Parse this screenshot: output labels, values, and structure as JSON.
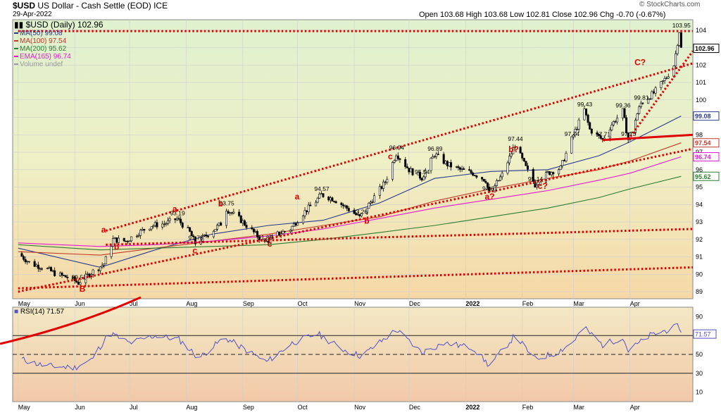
{
  "header": {
    "symbol": "$USD",
    "name": "US Dollar - Cash Settle (EOD)",
    "exchange": "ICE",
    "date": "29-Apr-2022",
    "symbol_line": "$USD (Daily) 102.96",
    "ohlc_line": "Open 103.68  High 103.68  Low 102.81  Close 102.96  Chg -0.70 (-0.67%)",
    "watermark": "© StockCharts.com"
  },
  "colors": {
    "price": "#000000",
    "ma50": "#2a3a8c",
    "ma100": "#c0392b",
    "ma200": "#2e7d32",
    "ema165": "#e31ad4",
    "annotation": "#e00000",
    "rsi": "#5050c8"
  },
  "legend": [
    {
      "text": "MA(50) 99.08",
      "color": "#2a3a8c"
    },
    {
      "text": "MA(100) 97.54",
      "color": "#c0392b"
    },
    {
      "text": "MA(200) 95.62",
      "color": "#2e7d32"
    },
    {
      "text": "EMA(165) 96.74",
      "color": "#e31ad4"
    },
    {
      "text": "Volume undef",
      "color": "#9a9a9a"
    }
  ],
  "chart_data": [
    {
      "type": "candlestick",
      "title": "$USD (Daily) 102.96",
      "ylim": [
        88.6,
        104.6
      ],
      "y_ticks": [
        89,
        90,
        91,
        92,
        93,
        94,
        95,
        96,
        97,
        98,
        99,
        100,
        101,
        102,
        103,
        104
      ],
      "x_labels": [
        "May",
        "Jun",
        "Jul",
        "Aug",
        "Sep",
        "Oct",
        "Nov",
        "Dec",
        "2022",
        "Feb",
        "Mar",
        "Apr"
      ],
      "price_path": [
        [
          "2021-05-01",
          91.2
        ],
        [
          "2021-05-08",
          90.6
        ],
        [
          "2021-05-15",
          90.4
        ],
        [
          "2021-05-22",
          90.0
        ],
        [
          "2021-05-29",
          89.8
        ],
        [
          "2021-06-03",
          89.51
        ],
        [
          "2021-06-10",
          90.1
        ],
        [
          "2021-06-17",
          90.6
        ],
        [
          "2021-06-22",
          92.0
        ],
        [
          "2021-06-29",
          91.9
        ],
        [
          "2021-07-06",
          92.4
        ],
        [
          "2021-07-13",
          92.8
        ],
        [
          "2021-07-20",
          92.9
        ],
        [
          "2021-07-27",
          93.19
        ],
        [
          "2021-08-03",
          92.4
        ],
        [
          "2021-08-06",
          91.78
        ],
        [
          "2021-08-13",
          92.3
        ],
        [
          "2021-08-20",
          92.9
        ],
        [
          "2021-08-23",
          93.75
        ],
        [
          "2021-08-30",
          93.2
        ],
        [
          "2021-09-06",
          92.5
        ],
        [
          "2021-09-13",
          91.8
        ],
        [
          "2021-09-20",
          92.3
        ],
        [
          "2021-09-27",
          92.6
        ],
        [
          "2021-10-04",
          93.5
        ],
        [
          "2021-10-11",
          94.2
        ],
        [
          "2021-10-14",
          94.57
        ],
        [
          "2021-10-21",
          94.3
        ],
        [
          "2021-10-28",
          93.8
        ],
        [
          "2021-11-04",
          93.26
        ],
        [
          "2021-11-11",
          94.3
        ],
        [
          "2021-11-18",
          95.3
        ],
        [
          "2021-11-24",
          96.94
        ],
        [
          "2021-12-01",
          96.0
        ],
        [
          "2021-12-08",
          95.54
        ],
        [
          "2021-12-15",
          96.89
        ],
        [
          "2021-12-22",
          96.3
        ],
        [
          "2021-12-29",
          96.0
        ],
        [
          "2022-01-05",
          95.8
        ],
        [
          "2022-01-12",
          95.4
        ],
        [
          "2022-01-14",
          94.61
        ],
        [
          "2022-01-21",
          95.7
        ],
        [
          "2022-01-28",
          97.44
        ],
        [
          "2022-02-04",
          95.9
        ],
        [
          "2022-02-08",
          95.14
        ],
        [
          "2022-02-15",
          95.8
        ],
        [
          "2022-02-22",
          96.1
        ],
        [
          "2022-02-28",
          97.74
        ],
        [
          "2022-03-07",
          99.43
        ],
        [
          "2022-03-10",
          98.3
        ],
        [
          "2022-03-17",
          97.71
        ],
        [
          "2022-03-22",
          98.6
        ],
        [
          "2022-03-28",
          99.36
        ],
        [
          "2022-03-31",
          97.73
        ],
        [
          "2022-04-07",
          99.81
        ],
        [
          "2022-04-14",
          100.4
        ],
        [
          "2022-04-21",
          101.3
        ],
        [
          "2022-04-25",
          102.0
        ],
        [
          "2022-04-28",
          103.95
        ],
        [
          "2022-04-29",
          102.96
        ]
      ],
      "series": [
        {
          "name": "MA(50) 99.08",
          "values": [
            [
              "2021-05-01",
              91.5
            ],
            [
              "2021-06-15",
              90.4
            ],
            [
              "2021-07-15",
              91.4
            ],
            [
              "2021-08-15",
              92.3
            ],
            [
              "2021-09-15",
              92.8
            ],
            [
              "2021-10-15",
              93.1
            ],
            [
              "2021-11-15",
              94.1
            ],
            [
              "2021-12-15",
              95.5
            ],
            [
              "2022-01-15",
              95.9
            ],
            [
              "2022-02-15",
              96.0
            ],
            [
              "2022-03-15",
              96.8
            ],
            [
              "2022-04-01",
              97.6
            ],
            [
              "2022-04-29",
              99.08
            ]
          ]
        },
        {
          "name": "MA(100) 97.54",
          "values": [
            [
              "2021-05-01",
              91.3
            ],
            [
              "2021-06-15",
              91.1
            ],
            [
              "2021-07-15",
              91.5
            ],
            [
              "2021-08-15",
              91.9
            ],
            [
              "2021-09-15",
              92.3
            ],
            [
              "2021-10-15",
              92.8
            ],
            [
              "2021-11-15",
              93.3
            ],
            [
              "2021-12-15",
              94.2
            ],
            [
              "2022-01-15",
              94.9
            ],
            [
              "2022-02-15",
              95.5
            ],
            [
              "2022-03-15",
              96.0
            ],
            [
              "2022-04-01",
              96.5
            ],
            [
              "2022-04-29",
              97.54
            ]
          ]
        },
        {
          "name": "MA(200) 95.62",
          "values": [
            [
              "2021-05-01",
              91.7
            ],
            [
              "2021-06-15",
              91.4
            ],
            [
              "2021-07-15",
              91.5
            ],
            [
              "2021-08-15",
              91.6
            ],
            [
              "2021-09-15",
              91.7
            ],
            [
              "2021-10-15",
              92.0
            ],
            [
              "2021-11-15",
              92.4
            ],
            [
              "2021-12-15",
              92.8
            ],
            [
              "2022-01-15",
              93.3
            ],
            [
              "2022-02-15",
              93.8
            ],
            [
              "2022-03-15",
              94.4
            ],
            [
              "2022-04-01",
              94.9
            ],
            [
              "2022-04-29",
              95.62
            ]
          ]
        },
        {
          "name": "EMA(165) 96.74",
          "values": [
            [
              "2021-05-01",
              91.8
            ],
            [
              "2021-06-15",
              91.6
            ],
            [
              "2021-07-15",
              91.7
            ],
            [
              "2021-08-15",
              91.9
            ],
            [
              "2021-09-15",
              92.2
            ],
            [
              "2021-10-15",
              92.6
            ],
            [
              "2021-11-15",
              93.2
            ],
            [
              "2021-12-15",
              93.8
            ],
            [
              "2022-01-15",
              94.3
            ],
            [
              "2022-02-15",
              94.8
            ],
            [
              "2022-03-15",
              95.4
            ],
            [
              "2022-04-01",
              95.8
            ],
            [
              "2022-04-29",
              96.74
            ]
          ]
        }
      ],
      "price_labels": [
        {
          "text": "89.51",
          "x": "2021-06-03",
          "y": 89.51
        },
        {
          "text": "93.19",
          "x": "2021-07-27",
          "y": 93.19
        },
        {
          "text": "91.78",
          "x": "2021-08-06",
          "y": 91.78
        },
        {
          "text": "93.75",
          "x": "2021-08-23",
          "y": 93.75
        },
        {
          "text": "91.80",
          "x": "2021-09-13",
          "y": 91.8
        },
        {
          "text": "94.57",
          "x": "2021-10-14",
          "y": 94.57
        },
        {
          "text": "93.26",
          "x": "2021-11-04",
          "y": 93.26
        },
        {
          "text": "96.94",
          "x": "2021-11-24",
          "y": 96.94
        },
        {
          "text": "95.54",
          "x": "2021-12-08",
          "y": 95.54
        },
        {
          "text": "96.89",
          "x": "2021-12-15",
          "y": 96.89
        },
        {
          "text": "94.61",
          "x": "2022-01-14",
          "y": 94.61
        },
        {
          "text": "97.44",
          "x": "2022-01-28",
          "y": 97.44
        },
        {
          "text": "95.14",
          "x": "2022-02-08",
          "y": 95.14
        },
        {
          "text": "97.74",
          "x": "2022-02-28",
          "y": 97.74
        },
        {
          "text": "99.43",
          "x": "2022-03-07",
          "y": 99.43
        },
        {
          "text": "97.71",
          "x": "2022-03-17",
          "y": 97.71
        },
        {
          "text": "99.36",
          "x": "2022-03-28",
          "y": 99.36
        },
        {
          "text": "97.73",
          "x": "2022-03-31",
          "y": 97.73
        },
        {
          "text": "99.81",
          "x": "2022-04-07",
          "y": 99.81
        },
        {
          "text": "103.95",
          "x": "2022-04-28",
          "y": 103.95
        }
      ],
      "wave_labels": [
        {
          "text": "B",
          "x": "2021-06-05",
          "y": 89.0
        },
        {
          "text": "a",
          "x": "2021-06-17",
          "y": 92.4
        },
        {
          "text": "b",
          "x": "2021-06-24",
          "y": 91.4
        },
        {
          "text": "a",
          "x": "2021-07-26",
          "y": 93.6
        },
        {
          "text": "c",
          "x": "2021-08-06",
          "y": 91.2
        },
        {
          "text": "b",
          "x": "2021-08-20",
          "y": 93.9
        },
        {
          "text": "c",
          "x": "2021-09-16",
          "y": 91.6
        },
        {
          "text": "a",
          "x": "2021-10-01",
          "y": 94.3
        },
        {
          "text": "b",
          "x": "2021-11-08",
          "y": 92.9
        },
        {
          "text": "c",
          "x": "2021-11-21",
          "y": 96.6
        },
        {
          "text": "a?",
          "x": "2022-01-13",
          "y": 94.3
        },
        {
          "text": "b?",
          "x": "2022-01-26",
          "y": 97.0
        },
        {
          "text": "c?",
          "x": "2022-02-11",
          "y": 94.9
        },
        {
          "text": "C?",
          "x": "2022-04-05",
          "y": 102.0
        }
      ],
      "annotation_lines": [
        {
          "style": "dotted",
          "from": [
            "2021-06-18",
            92.5
          ],
          "to": [
            "2022-04-30",
            102.1
          ]
        },
        {
          "style": "dotted",
          "from": [
            "2021-05-01",
            89.2
          ],
          "to": [
            "2022-04-30",
            90.4
          ]
        },
        {
          "style": "dotted",
          "from": [
            "2021-06-18",
            91.7
          ],
          "to": [
            "2022-04-30",
            92.6
          ]
        },
        {
          "style": "dotted",
          "from": [
            "2021-05-01",
            89.0
          ],
          "to": [
            "2022-04-30",
            97.2
          ]
        },
        {
          "style": "dotted",
          "from": [
            "2021-05-01",
            103.95
          ],
          "to": [
            "2022-04-30",
            103.95
          ]
        },
        {
          "style": "dotted",
          "from": [
            "2022-03-31",
            97.73
          ],
          "to": [
            "2022-04-30",
            102.8
          ]
        },
        {
          "style": "solid",
          "from": [
            "2022-03-17",
            97.7
          ],
          "to": [
            "2022-04-30",
            98.0
          ]
        }
      ],
      "right_axis_labels": [
        {
          "text": "102.96",
          "y": 102.96,
          "color": "#000000"
        },
        {
          "text": "99.08",
          "y": 99.08,
          "color": "#2a3a8c"
        },
        {
          "text": "97.54",
          "y": 97.54,
          "color": "#c0392b"
        },
        {
          "text": "96.74",
          "y": 96.74,
          "color": "#e31ad4"
        },
        {
          "text": "95.62",
          "y": 95.62,
          "color": "#2e7d32"
        }
      ]
    },
    {
      "type": "line",
      "title": "RSI(14) 71.57",
      "ylim": [
        0,
        100
      ],
      "y_ticks": [
        10,
        30,
        50,
        70,
        90
      ],
      "reference_lines": [
        30,
        50,
        70
      ],
      "last_value": 71.57,
      "x_labels": [
        "May",
        "Jun",
        "Jul",
        "Aug",
        "Sep",
        "Oct",
        "Nov",
        "Dec",
        "2022",
        "Feb",
        "Mar",
        "Apr"
      ],
      "values": [
        [
          "2021-05-01",
          46
        ],
        [
          "2021-05-15",
          38
        ],
        [
          "2021-06-01",
          36
        ],
        [
          "2021-06-10",
          44
        ],
        [
          "2021-06-20",
          73
        ],
        [
          "2021-07-01",
          62
        ],
        [
          "2021-07-15",
          70
        ],
        [
          "2021-07-28",
          66
        ],
        [
          "2021-08-08",
          46
        ],
        [
          "2021-08-22",
          68
        ],
        [
          "2021-09-05",
          52
        ],
        [
          "2021-09-14",
          42
        ],
        [
          "2021-09-28",
          62
        ],
        [
          "2021-10-12",
          72
        ],
        [
          "2021-10-25",
          56
        ],
        [
          "2021-11-05",
          48
        ],
        [
          "2021-11-24",
          76
        ],
        [
          "2021-12-08",
          52
        ],
        [
          "2021-12-20",
          62
        ],
        [
          "2022-01-05",
          57
        ],
        [
          "2022-01-14",
          38
        ],
        [
          "2022-01-28",
          70
        ],
        [
          "2022-02-08",
          45
        ],
        [
          "2022-02-20",
          52
        ],
        [
          "2022-02-28",
          62
        ],
        [
          "2022-03-07",
          78
        ],
        [
          "2022-03-17",
          60
        ],
        [
          "2022-03-28",
          68
        ],
        [
          "2022-03-31",
          54
        ],
        [
          "2022-04-12",
          70
        ],
        [
          "2022-04-28",
          80
        ],
        [
          "2022-04-29",
          71.57
        ]
      ]
    }
  ],
  "rsi": {
    "label": "RSI(14) 71.57",
    "value_badge": "71.57"
  }
}
